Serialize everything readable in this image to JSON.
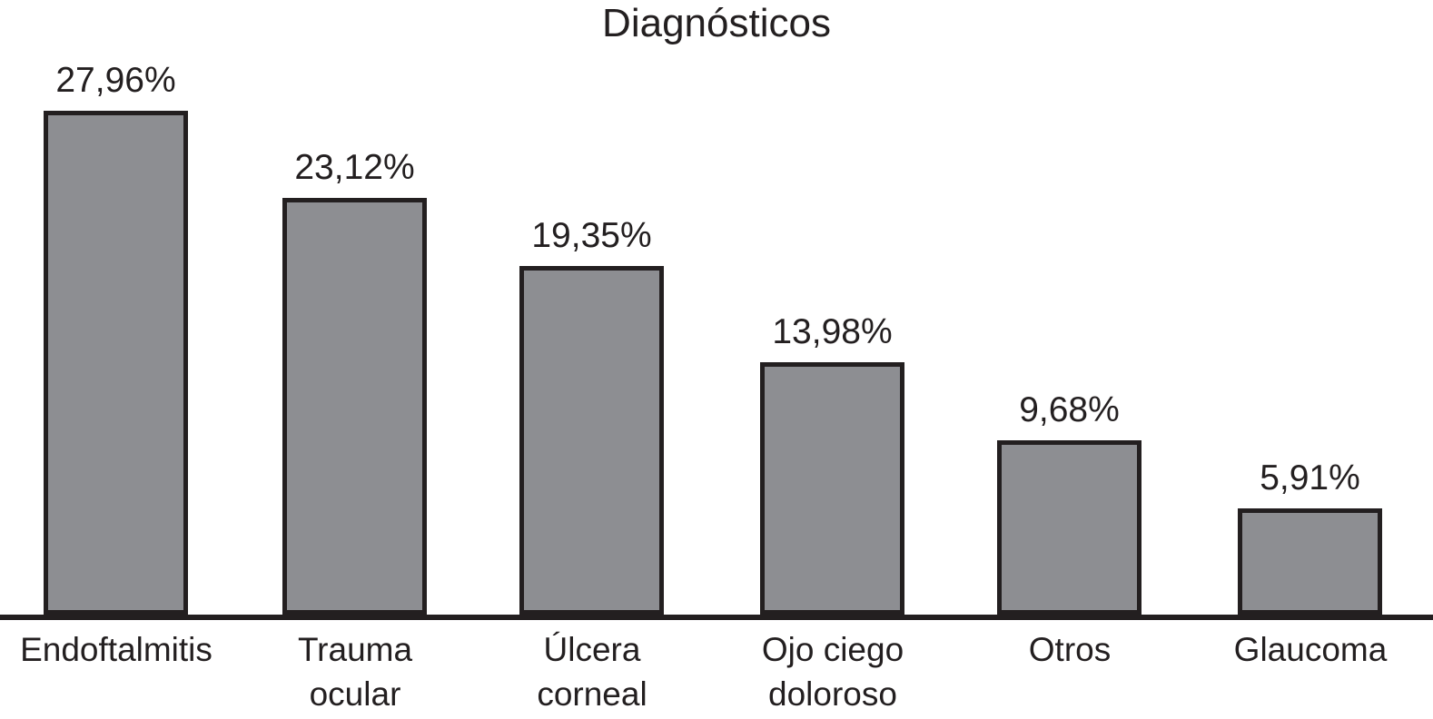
{
  "title": "Diagnósticos",
  "colors": {
    "bar_fill": "#8d8e92",
    "bar_border": "#231f20",
    "axis": "#231f20",
    "text": "#231f20",
    "background": "#ffffff"
  },
  "chart_data": {
    "type": "bar",
    "title": "Diagnósticos",
    "categories": [
      "Endoftalmitis",
      "Trauma ocular",
      "Úlcera corneal",
      "Ojo ciego doloroso",
      "Otros",
      "Glaucoma"
    ],
    "values": [
      27.96,
      23.12,
      19.35,
      13.98,
      9.68,
      5.91
    ],
    "value_labels": [
      "27,96%",
      "23,12%",
      "19,35%",
      "13,98%",
      "9,68%",
      "5,91%"
    ],
    "tick_labels": [
      "Endoftalmitis",
      "Trauma\nocular",
      "Úlcera\ncorneal",
      "Ojo ciego\ndoloroso",
      "Otros",
      "Glaucoma"
    ],
    "xlabel": "",
    "ylabel": "",
    "ylim": [
      0,
      28
    ],
    "grid": false,
    "legend": null,
    "y_axis_visible": false,
    "bar_label_position": "above"
  }
}
